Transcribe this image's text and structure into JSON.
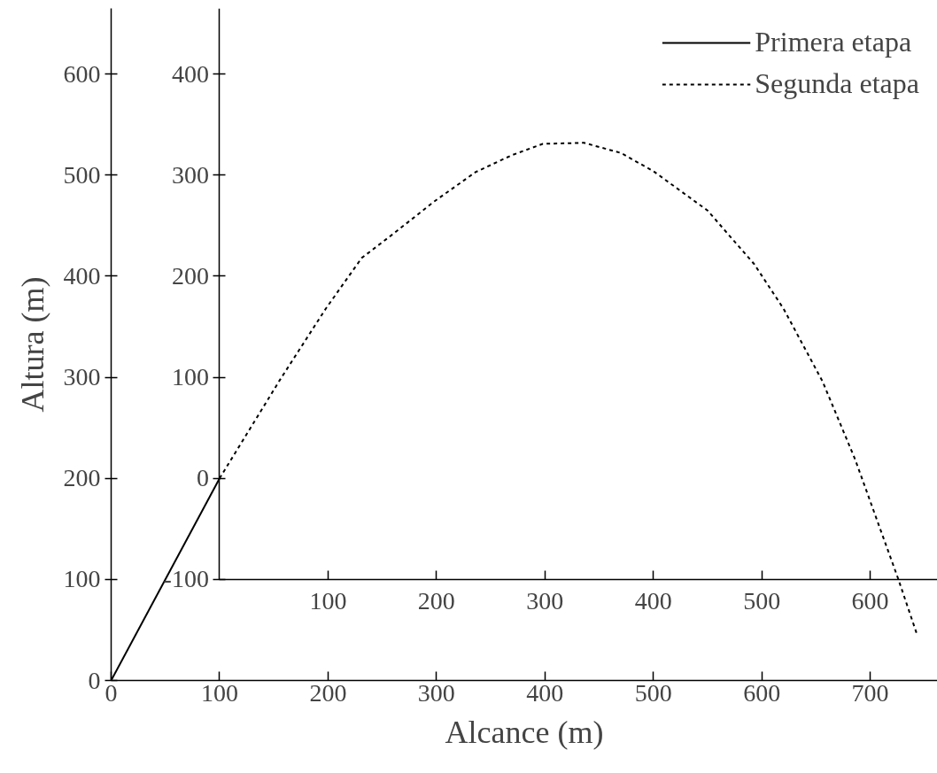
{
  "chart_data": {
    "type": "line",
    "xlabel": "Alcance (m)",
    "ylabel": "Altura (m)",
    "xlim": [
      0,
      762
    ],
    "ylim": [
      0,
      665
    ],
    "xticks": [
      0,
      100,
      200,
      300,
      400,
      500,
      600,
      700
    ],
    "yticks": [
      0,
      100,
      200,
      300,
      400,
      500,
      600
    ],
    "x2lim": [
      0,
      662
    ],
    "x2ticks": [
      100,
      200,
      300,
      400,
      500,
      600
    ],
    "y2lim": [
      -200,
      465
    ],
    "y2ticks": [
      -100,
      0,
      100,
      200,
      300,
      400
    ],
    "grid": false,
    "legend": "top right",
    "series": [
      {
        "name": "Primera etapa",
        "color": "#000000",
        "line_style": "solid",
        "x": [
          0,
          100
        ],
        "values": [
          0,
          200
        ]
      },
      {
        "name": "Segunda etapa",
        "color": "#000000",
        "line_style": "dashed",
        "axis": "y2",
        "x": [
          100,
          156,
          198,
          231,
          259,
          298,
          336,
          370,
          398,
          436,
          470,
          500,
          550,
          593,
          620,
          656,
          686,
          726,
          743
        ],
        "values": [
          0,
          98,
          168,
          218,
          241,
          274,
          303,
          320,
          331,
          332,
          322,
          304,
          265,
          212,
          168,
          96,
          19,
          -100,
          -154
        ]
      }
    ]
  }
}
